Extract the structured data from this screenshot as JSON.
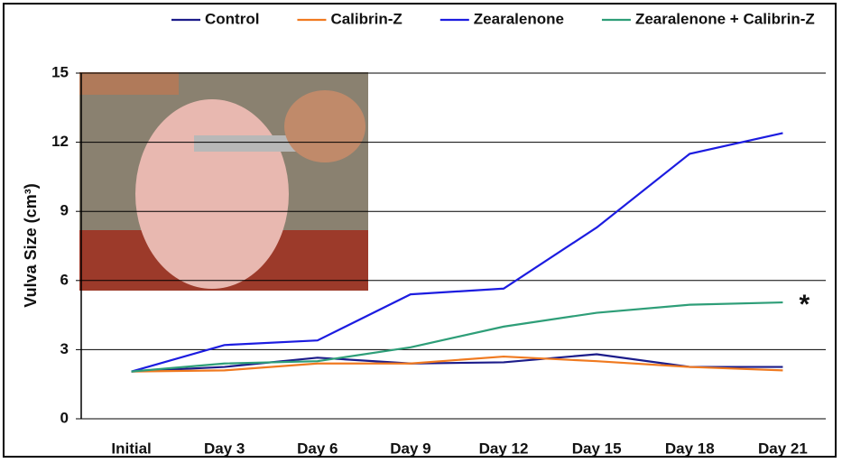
{
  "chart_data": {
    "type": "line",
    "ylabel": "Vulva Size (cm³)",
    "categories": [
      "Initial",
      "Day 3",
      "Day 6",
      "Day 9",
      "Day 12",
      "Day 15",
      "Day 18",
      "Day 21"
    ],
    "series": [
      {
        "name": "Control",
        "color": "#1c1c8a",
        "values": [
          2.05,
          2.25,
          2.65,
          2.4,
          2.45,
          2.8,
          2.25,
          2.25
        ]
      },
      {
        "name": "Calibrin-Z",
        "color": "#f07a20",
        "values": [
          2.05,
          2.1,
          2.4,
          2.4,
          2.7,
          2.5,
          2.25,
          2.1
        ]
      },
      {
        "name": "Zearalenone",
        "color": "#1c1ce0",
        "values": [
          2.05,
          3.2,
          3.4,
          5.4,
          5.65,
          8.3,
          11.5,
          12.4
        ]
      },
      {
        "name": "Zearalenone + Calibrin-Z",
        "color": "#2e9e78",
        "values": [
          2.05,
          2.4,
          2.5,
          3.1,
          4.0,
          4.6,
          4.95,
          5.05
        ]
      }
    ],
    "annotation": "*",
    "ylim": [
      0,
      15
    ],
    "yticks": [
      0,
      3,
      6,
      9,
      12,
      15
    ],
    "grid": true
  }
}
